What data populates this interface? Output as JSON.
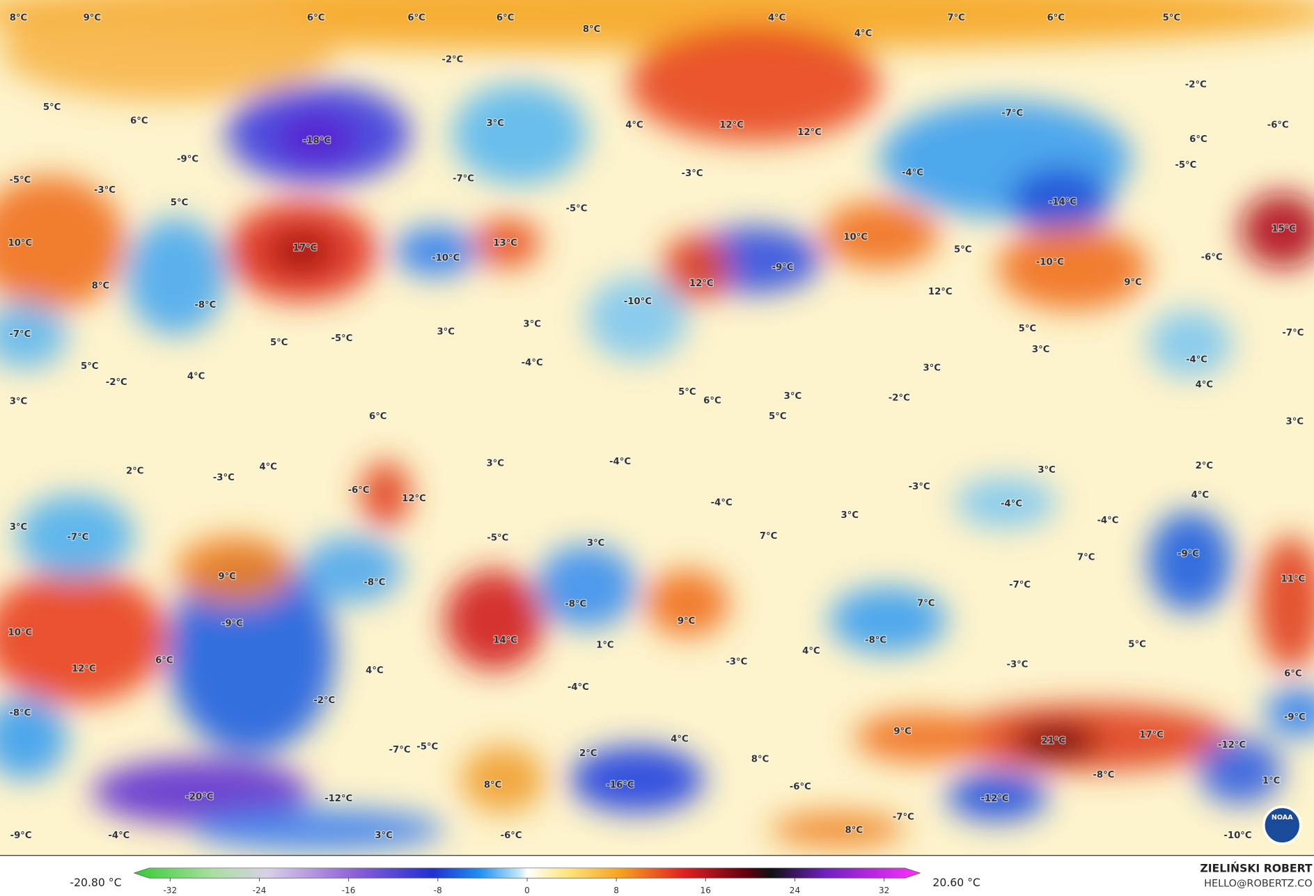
{
  "map": {
    "labels": [
      "8°C",
      "9°C",
      "6°C",
      "6°C",
      "6°C",
      "8°C",
      "4°C",
      "4°C",
      "7°C",
      "6°C",
      "5°C",
      "-2°C",
      "-2°C",
      "5°C",
      "6°C",
      "3°C",
      "4°C",
      "12°C",
      "12°C",
      "-7°C",
      "-6°C",
      "-18°C",
      "-9°C",
      "6°C",
      "-5°C",
      "-5°C",
      "-3°C",
      "5°C",
      "-7°C",
      "-3°C",
      "-4°C",
      "-14°C",
      "-5°C",
      "10°C",
      "5°C",
      "15°C",
      "10°C",
      "17°C",
      "-10°C",
      "13°C",
      "-9°C",
      "-10°C",
      "-6°C",
      "9°C",
      "8°C",
      "-8°C",
      "12°C",
      "-10°C",
      "12°C",
      "-7°C",
      "5°C",
      "-5°C",
      "3°C",
      "3°C",
      "5°C",
      "3°C",
      "-7°C",
      "5°C",
      "-2°C",
      "4°C",
      "-4°C",
      "3°C",
      "-4°C",
      "3°C",
      "5°C",
      "6°C",
      "3°C",
      "-2°C",
      "4°C",
      "5°C",
      "3°C",
      "6°C",
      "2°C",
      "4°C",
      "-3°C",
      "3°C",
      "-4°C",
      "3°C",
      "2°C",
      "-6°C",
      "-3°C",
      "12°C",
      "-4°C",
      "-4°C",
      "3°C",
      "4°C",
      "3°C",
      "-7°C",
      "-5°C",
      "3°C",
      "7°C",
      "-4°C",
      "-9°C",
      "7°C",
      "9°C",
      "-8°C",
      "-7°C",
      "11°C",
      "-8°C",
      "7°C",
      "-9°C",
      "9°C",
      "10°C",
      "14°C",
      "1°C",
      "4°C",
      "-8°C",
      "5°C",
      "12°C",
      "6°C",
      "4°C",
      "-3°C",
      "-4°C",
      "-3°C",
      "6°C",
      "-2°C",
      "-8°C",
      "-9°C",
      "9°C",
      "21°C",
      "17°C",
      "-12°C",
      "4°C",
      "-7°C",
      "-5°C",
      "2°C",
      "8°C",
      "-8°C",
      "8°C",
      "-16°C",
      "-6°C",
      "-20°C",
      "-12°C",
      "-12°C",
      "1°C",
      "-7°C",
      "8°C",
      "-9°C",
      "-4°C",
      "3°C",
      "-6°C",
      "-10°C"
    ]
  },
  "colorbar": {
    "ticks": [
      -32,
      -24,
      -16,
      -8,
      0,
      8,
      16,
      24,
      32
    ],
    "min_label": "-20.80 °C",
    "max_label": "20.60 °C"
  },
  "credit": {
    "name": "ZIELIŃSKI ROBERT",
    "email": "HELLO@ROBERTZ.CO"
  },
  "logo": "NOAA"
}
